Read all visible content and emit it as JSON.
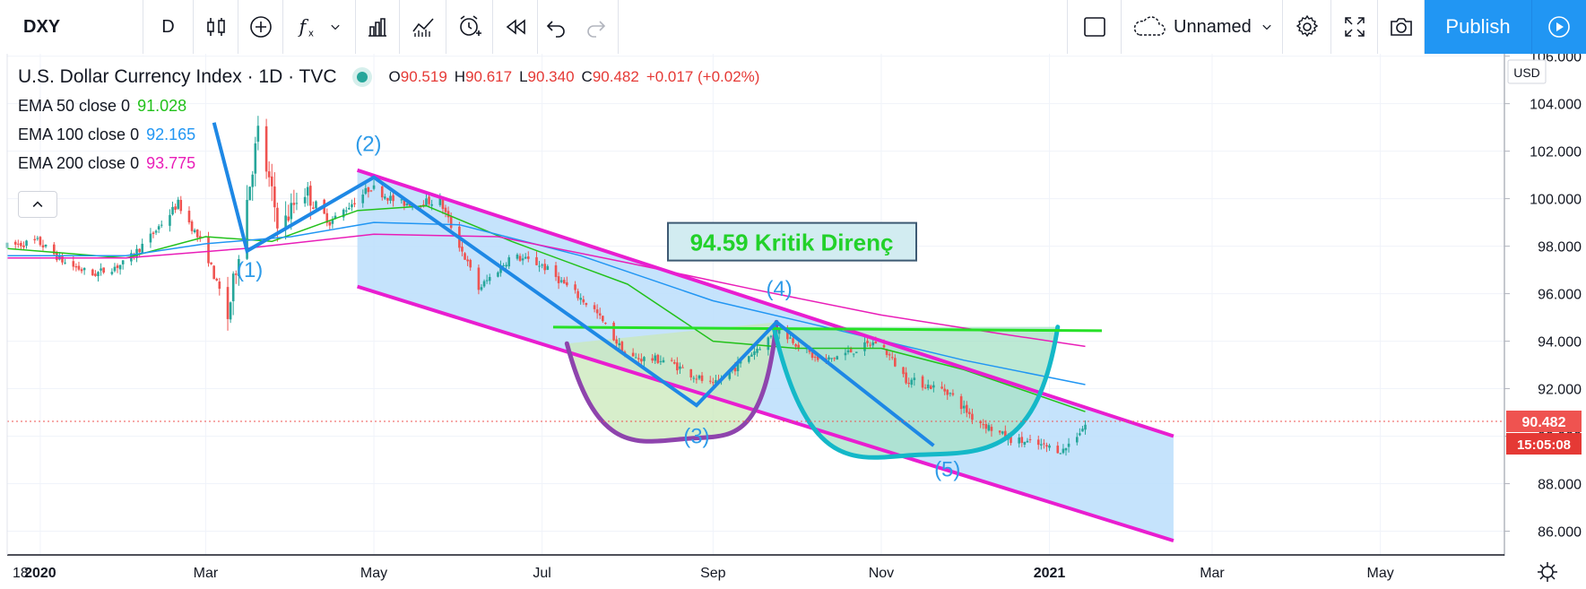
{
  "toolbar": {
    "symbol": "DXY",
    "interval": "D",
    "layout_name": "Unnamed",
    "publish_label": "Publish"
  },
  "legend": {
    "title": "U.S. Dollar Currency Index · 1D · TVC",
    "ohlc": {
      "o_label": "O",
      "o": "90.519",
      "h_label": "H",
      "h": "90.617",
      "l_label": "L",
      "l": "90.340",
      "c_label": "C",
      "c": "90.482",
      "change": "+0.017 (+0.02%)"
    },
    "emas": [
      {
        "label": "EMA 50 close 0",
        "value": "91.028",
        "color": "#22c11a"
      },
      {
        "label": "EMA 100 close 0",
        "value": "92.165",
        "color": "#2196f3"
      },
      {
        "label": "EMA 200 close 0",
        "value": "93.775",
        "color": "#e91eb8"
      }
    ]
  },
  "price_axis": {
    "currency": "USD",
    "last_price": "90.482",
    "countdown": "15:05:08"
  },
  "colors": {
    "up": "#26a69a",
    "down": "#ef5350",
    "channel_fill": "#bbdefb",
    "channel_line": "#e91ed0",
    "resistance": "#27e027",
    "wave": "#1e88e5",
    "cup1": "#8e44ad",
    "cup2": "#14b8c8",
    "label_text": "#2e9be8",
    "annotation_text": "#22d12a"
  },
  "chart_data": {
    "type": "candlestick",
    "title": "U.S. Dollar Currency Index",
    "x_ticks": [
      "18",
      "2020",
      "Mar",
      "May",
      "Jul",
      "Sep",
      "Nov",
      "2021",
      "Mar",
      "May"
    ],
    "y_ticks": [
      "106.000",
      "104.000",
      "102.000",
      "100.000",
      "98.000",
      "96.000",
      "94.000",
      "92.000",
      "90.000",
      "88.000",
      "86.000"
    ],
    "ylim": [
      85.0,
      106.1
    ],
    "x_range": [
      "2019-12-20",
      "2021-06-15"
    ],
    "price_anchors": [
      {
        "date": "2019-12-20",
        "price": 98.0
      },
      {
        "date": "2019-12-31",
        "price": 98.2
      },
      {
        "date": "2020-01-10",
        "price": 97.3
      },
      {
        "date": "2020-01-20",
        "price": 96.8
      },
      {
        "date": "2020-02-01",
        "price": 97.3
      },
      {
        "date": "2020-02-10",
        "price": 98.4
      },
      {
        "date": "2020-02-20",
        "price": 99.8
      },
      {
        "date": "2020-03-01",
        "price": 97.8
      },
      {
        "date": "2020-03-09",
        "price": 95.0
      },
      {
        "date": "2020-03-20",
        "price": 102.8
      },
      {
        "date": "2020-03-28",
        "price": 98.6
      },
      {
        "date": "2020-04-05",
        "price": 100.5
      },
      {
        "date": "2020-04-15",
        "price": 99.0
      },
      {
        "date": "2020-04-30",
        "price": 100.5
      },
      {
        "date": "2020-05-10",
        "price": 99.8
      },
      {
        "date": "2020-05-25",
        "price": 99.9
      },
      {
        "date": "2020-06-08",
        "price": 96.2
      },
      {
        "date": "2020-06-20",
        "price": 97.6
      },
      {
        "date": "2020-07-01",
        "price": 97.2
      },
      {
        "date": "2020-07-20",
        "price": 95.3
      },
      {
        "date": "2020-08-01",
        "price": 93.3
      },
      {
        "date": "2020-08-15",
        "price": 93.2
      },
      {
        "date": "2020-09-01",
        "price": 92.1
      },
      {
        "date": "2020-09-25",
        "price": 94.5
      },
      {
        "date": "2020-10-10",
        "price": 93.1
      },
      {
        "date": "2020-10-31",
        "price": 94.0
      },
      {
        "date": "2020-11-10",
        "price": 92.4
      },
      {
        "date": "2020-11-25",
        "price": 91.9
      },
      {
        "date": "2020-12-04",
        "price": 90.8
      },
      {
        "date": "2020-12-17",
        "price": 89.9
      },
      {
        "date": "2021-01-06",
        "price": 89.4
      },
      {
        "date": "2021-01-14",
        "price": 90.48
      }
    ],
    "ema_series": [
      {
        "name": "EMA 50 close 0",
        "color": "#22c11a",
        "points": [
          [
            "2019-12-20",
            97.9
          ],
          [
            "2020-02-01",
            97.5
          ],
          [
            "2020-03-01",
            98.4
          ],
          [
            "2020-03-25",
            98.2
          ],
          [
            "2020-04-25",
            99.5
          ],
          [
            "2020-05-20",
            99.7
          ],
          [
            "2020-06-20",
            98.2
          ],
          [
            "2020-08-01",
            96.4
          ],
          [
            "2020-09-01",
            94.0
          ],
          [
            "2020-10-01",
            93.7
          ],
          [
            "2020-11-01",
            93.7
          ],
          [
            "2020-12-01",
            92.8
          ],
          [
            "2021-01-14",
            91.03
          ]
        ]
      },
      {
        "name": "EMA 100 close 0",
        "color": "#2196f3",
        "points": [
          [
            "2019-12-20",
            97.6
          ],
          [
            "2020-02-01",
            97.6
          ],
          [
            "2020-03-01",
            98.1
          ],
          [
            "2020-04-01",
            98.4
          ],
          [
            "2020-05-01",
            99.0
          ],
          [
            "2020-06-01",
            98.9
          ],
          [
            "2020-07-15",
            97.6
          ],
          [
            "2020-09-01",
            95.7
          ],
          [
            "2020-10-15",
            94.5
          ],
          [
            "2020-12-01",
            93.2
          ],
          [
            "2021-01-14",
            92.17
          ]
        ]
      },
      {
        "name": "EMA 200 close 0",
        "color": "#e91eb8",
        "points": [
          [
            "2019-12-20",
            97.5
          ],
          [
            "2020-02-01",
            97.5
          ],
          [
            "2020-03-15",
            97.9
          ],
          [
            "2020-05-01",
            98.5
          ],
          [
            "2020-06-15",
            98.4
          ],
          [
            "2020-08-01",
            97.3
          ],
          [
            "2020-09-15",
            96.2
          ],
          [
            "2020-11-01",
            95.1
          ],
          [
            "2020-12-15",
            94.3
          ],
          [
            "2021-01-14",
            93.78
          ]
        ]
      }
    ],
    "annotations": {
      "channel": {
        "upper": [
          [
            "2020-04-25",
            101.2
          ],
          [
            "2021-02-15",
            90.0
          ]
        ],
        "lower": [
          [
            "2020-04-25",
            96.3
          ],
          [
            "2021-02-15",
            85.6
          ]
        ]
      },
      "resistance": {
        "price": 94.59,
        "from": "2020-07-05",
        "to": "2021-01-20",
        "label": "94.59 Kritik Direnç"
      },
      "wave": [
        [
          "2020-03-04",
          103.2
        ],
        [
          "2020-03-16",
          97.8
        ],
        [
          "2020-05-01",
          100.9
        ],
        [
          "2020-08-26",
          91.3
        ],
        [
          "2020-09-24",
          94.8
        ],
        [
          "2020-11-20",
          89.6
        ]
      ],
      "wave_labels": [
        {
          "text": "(1)",
          "date": "2020-03-17",
          "price": 96.7
        },
        {
          "text": "(2)",
          "date": "2020-04-29",
          "price": 102.0
        },
        {
          "text": "(3)",
          "date": "2020-08-26",
          "price": 89.7
        },
        {
          "text": "(4)",
          "date": "2020-09-25",
          "price": 95.9
        },
        {
          "text": "(5)",
          "date": "2020-11-25",
          "price": 88.3
        }
      ],
      "cups": [
        {
          "color": "#8e44ad",
          "fill": "#c9e8b9",
          "left": [
            "2020-07-10",
            93.9
          ],
          "bottom": [
            "2020-08-23",
            89.9
          ],
          "right": [
            "2020-09-24",
            94.8
          ]
        },
        {
          "color": "#14b8c8",
          "fill": "#a6e1c6",
          "left": [
            "2020-09-23",
            94.6
          ],
          "bottom": [
            "2020-11-12",
            89.2
          ],
          "right": [
            "2021-01-04",
            94.6
          ]
        }
      ]
    }
  }
}
